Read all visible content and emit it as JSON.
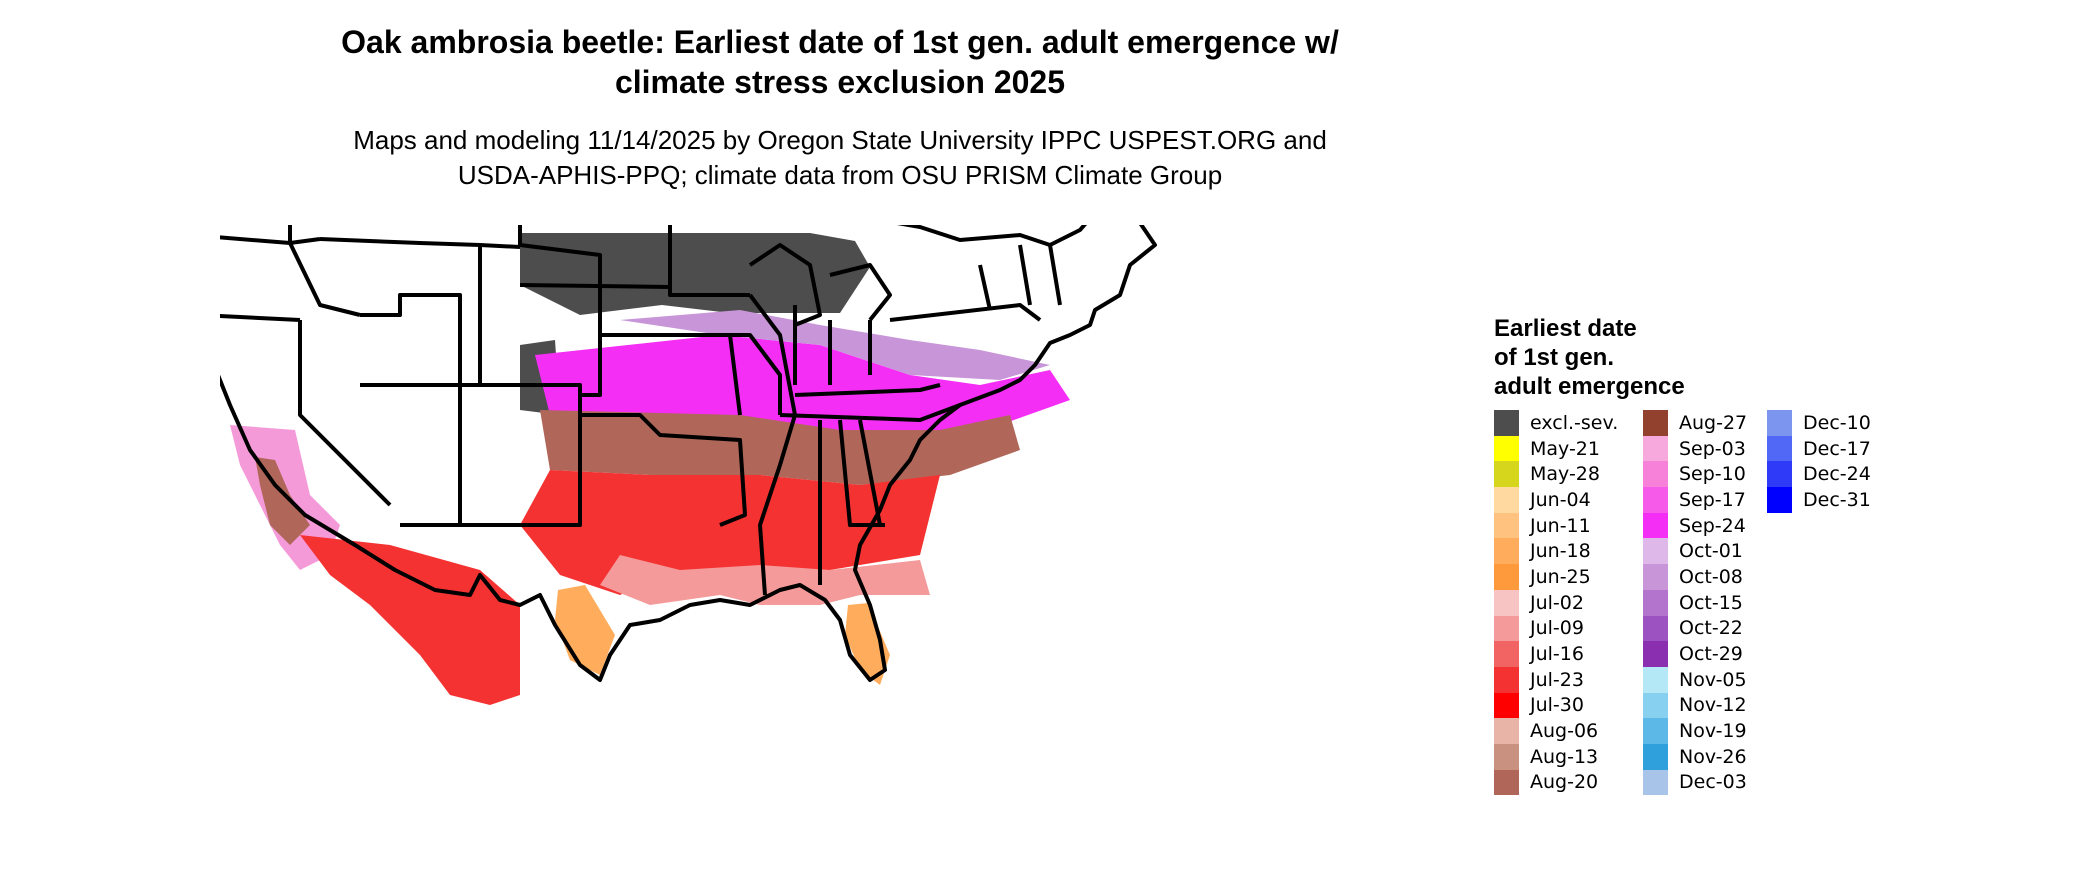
{
  "title_lines": [
    "Oak ambrosia beetle: Earliest date of 1st gen. adult emergence w/",
    "climate stress exclusion 2025"
  ],
  "subtitle_lines": [
    "Maps and modeling 11/14/2025 by Oregon State University IPPC USPEST.ORG and",
    "USDA-APHIS-PPQ; climate data from OSU PRISM Climate Group"
  ],
  "legend": {
    "title_lines": [
      "Earliest date",
      "of 1st gen.",
      "adult emergence"
    ],
    "columns": [
      [
        {
          "label": "excl.-sev.",
          "color": "#4d4d4d"
        },
        {
          "label": "May-21",
          "color": "#ffff00"
        },
        {
          "label": "May-28",
          "color": "#d6d61c"
        },
        {
          "label": "Jun-04",
          "color": "#ffd9a0"
        },
        {
          "label": "Jun-11",
          "color": "#ffc27f"
        },
        {
          "label": "Jun-18",
          "color": "#ffad5c"
        },
        {
          "label": "Jun-25",
          "color": "#ff9a3c"
        },
        {
          "label": "Jul-02",
          "color": "#f7c3c3"
        },
        {
          "label": "Jul-09",
          "color": "#f59a9a"
        },
        {
          "label": "Jul-16",
          "color": "#f26464"
        },
        {
          "label": "Jul-23",
          "color": "#f53232"
        },
        {
          "label": "Jul-30",
          "color": "#ff0000"
        },
        {
          "label": "Aug-06",
          "color": "#e8b4a8"
        },
        {
          "label": "Aug-13",
          "color": "#c9917f"
        },
        {
          "label": "Aug-20",
          "color": "#b0675a"
        }
      ],
      [
        {
          "label": "Aug-27",
          "color": "#93412f"
        },
        {
          "label": "Sep-03",
          "color": "#f7a8dc"
        },
        {
          "label": "Sep-10",
          "color": "#f780d8"
        },
        {
          "label": "Sep-17",
          "color": "#f55ae8"
        },
        {
          "label": "Sep-24",
          "color": "#f52ef5"
        },
        {
          "label": "Oct-01",
          "color": "#ddb8e8"
        },
        {
          "label": "Oct-08",
          "color": "#c896d8"
        },
        {
          "label": "Oct-15",
          "color": "#b274cc"
        },
        {
          "label": "Oct-22",
          "color": "#9c52c0"
        },
        {
          "label": "Oct-29",
          "color": "#8a2fb0"
        },
        {
          "label": "Nov-05",
          "color": "#b4e8f7"
        },
        {
          "label": "Nov-12",
          "color": "#87d0ef"
        },
        {
          "label": "Nov-19",
          "color": "#5cb8e6"
        },
        {
          "label": "Nov-26",
          "color": "#2fa0dc"
        },
        {
          "label": "Dec-03",
          "color": "#a8c4e8"
        }
      ],
      [
        {
          "label": "Dec-10",
          "color": "#7c96f0"
        },
        {
          "label": "Dec-17",
          "color": "#5068f5"
        },
        {
          "label": "Dec-24",
          "color": "#2e3af8"
        },
        {
          "label": "Dec-31",
          "color": "#0000ff"
        }
      ]
    ]
  }
}
